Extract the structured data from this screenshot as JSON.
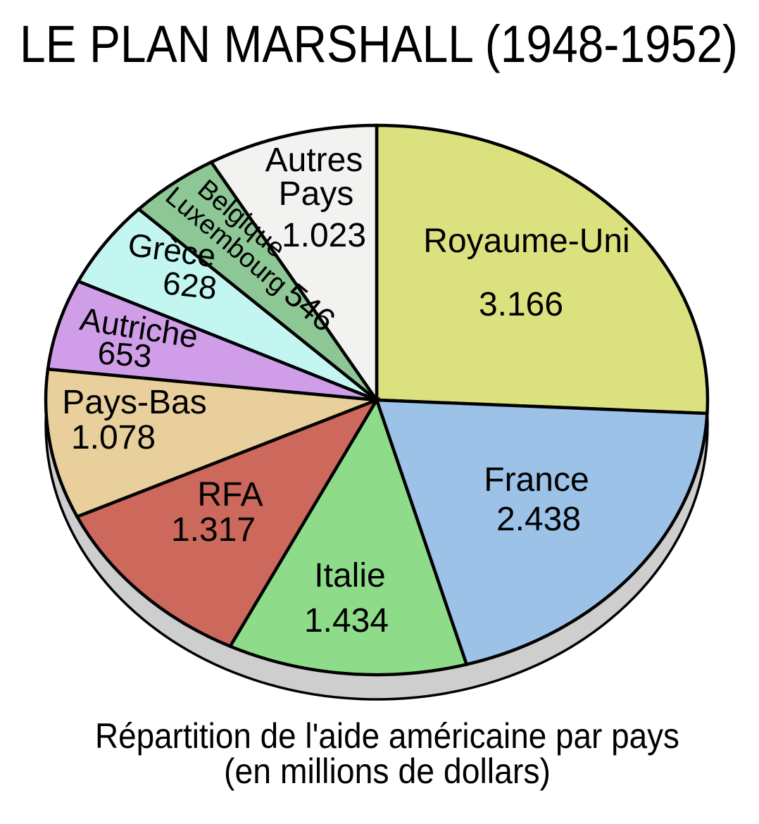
{
  "page": {
    "background": "#ffffff"
  },
  "title": "LE PLAN MARSHALL (1948-1952)",
  "caption_lines": [
    "Répartition de l'aide américaine par pays",
    "(en millions de dollars)"
  ],
  "chart_data": {
    "type": "pie",
    "title": "LE PLAN MARSHALL (1948-1952)",
    "caption_lines": [
      "Répartition de l'aide américaine par pays",
      "(en millions de dollars)"
    ],
    "unit": "millions de dollars",
    "total": 12283,
    "start_angle_deg": 0,
    "direction": "clockwise",
    "appearance": "3d-ellipse",
    "style": {
      "outline_color": "#000000",
      "rim_color": "#cecece",
      "text_color": "#000000",
      "background": "#ffffff"
    },
    "slices": [
      {
        "label": "Royaume-Uni",
        "label_lines": [
          "Royaume-Uni"
        ],
        "value": 3166,
        "value_label": "3.166",
        "color": "#dbe17e"
      },
      {
        "label": "France",
        "label_lines": [
          "France"
        ],
        "value": 2438,
        "value_label": "2.438",
        "color": "#9cc2e8"
      },
      {
        "label": "Italie",
        "label_lines": [
          "Italie"
        ],
        "value": 1434,
        "value_label": "1.434",
        "color": "#8edc89"
      },
      {
        "label": "RFA",
        "label_lines": [
          "RFA"
        ],
        "value": 1317,
        "value_label": "1.317",
        "color": "#cc685c"
      },
      {
        "label": "Pays-Bas",
        "label_lines": [
          "Pays-Bas"
        ],
        "value": 1078,
        "value_label": "1.078",
        "color": "#e8cf9c"
      },
      {
        "label": "Autriche",
        "label_lines": [
          "Autriche"
        ],
        "value": 653,
        "value_label": "653",
        "color": "#d09ee9"
      },
      {
        "label": "Grèce",
        "label_lines": [
          "Grèce"
        ],
        "value": 628,
        "value_label": "628",
        "color": "#c4f6f1"
      },
      {
        "label": "Belgique Luxembourg",
        "label_lines": [
          "Belgique",
          "Luxembourg"
        ],
        "value": 546,
        "value_label": "546",
        "color": "#8dc795"
      },
      {
        "label": "Autres Pays",
        "label_lines": [
          "Autres",
          "Pays"
        ],
        "value": 1023,
        "value_label": "1.023",
        "color": "#f2f2f0"
      }
    ]
  }
}
